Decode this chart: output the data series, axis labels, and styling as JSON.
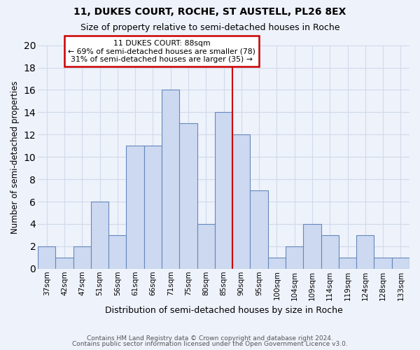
{
  "title1": "11, DUKES COURT, ROCHE, ST AUSTELL, PL26 8EX",
  "title2": "Size of property relative to semi-detached houses in Roche",
  "xlabel": "Distribution of semi-detached houses by size in Roche",
  "ylabel": "Number of semi-detached properties",
  "bin_labels": [
    "37sqm",
    "42sqm",
    "47sqm",
    "51sqm",
    "56sqm",
    "61sqm",
    "66sqm",
    "71sqm",
    "75sqm",
    "80sqm",
    "85sqm",
    "90sqm",
    "95sqm",
    "100sqm",
    "104sqm",
    "109sqm",
    "114sqm",
    "119sqm",
    "124sqm",
    "128sqm",
    "133sqm"
  ],
  "counts": [
    2,
    1,
    2,
    6,
    3,
    11,
    11,
    16,
    13,
    4,
    14,
    12,
    7,
    1,
    2,
    4,
    3,
    1,
    3,
    1,
    1
  ],
  "bar_color": "#ccd9f0",
  "bar_edge_color": "#6688bb",
  "annotation_title": "11 DUKES COURT: 88sqm",
  "annotation_line1": "← 69% of semi-detached houses are smaller (78)",
  "annotation_line2": "31% of semi-detached houses are larger (35) →",
  "vline_color": "#cc0000",
  "vline_bin_index": 11,
  "annotation_box_facecolor": "#ffffff",
  "annotation_box_edgecolor": "#cc0000",
  "ylim_max": 20,
  "yticks": [
    0,
    2,
    4,
    6,
    8,
    10,
    12,
    14,
    16,
    18,
    20
  ],
  "footer1": "Contains HM Land Registry data © Crown copyright and database right 2024.",
  "footer2": "Contains public sector information licensed under the Open Government Licence v3.0.",
  "grid_color": "#d0daea",
  "background_color": "#eef2fb",
  "title_fontsize": 10,
  "subtitle_fontsize": 9
}
